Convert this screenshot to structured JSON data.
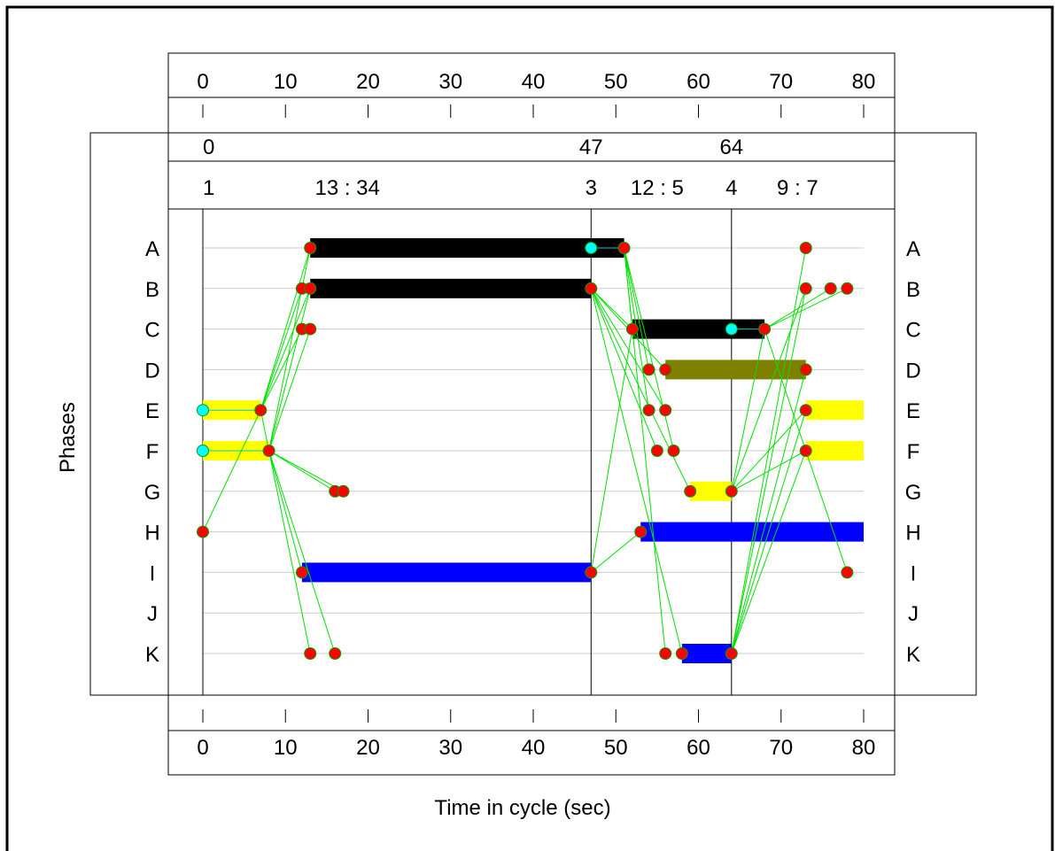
{
  "chart_data": {
    "type": "gantt",
    "xlabel": "Time in cycle (sec)",
    "ylabel": "Phases",
    "xlim": [
      0,
      80
    ],
    "x_ticks": [
      "0",
      "10",
      "20",
      "30",
      "40",
      "50",
      "60",
      "70",
      "80"
    ],
    "rows": [
      "A",
      "B",
      "C",
      "D",
      "E",
      "F",
      "G",
      "H",
      "I",
      "J",
      "K"
    ],
    "barrier_times": [
      {
        "value": 0,
        "label": "0"
      },
      {
        "value": 47,
        "label": "47"
      },
      {
        "value": 64,
        "label": "64"
      }
    ],
    "stage_labels": [
      {
        "x": 0,
        "text": "1",
        "color": "#ffff00"
      },
      {
        "x": 17.5,
        "text": "13 : 34",
        "color": "#ff0000"
      },
      {
        "x": 47,
        "text": "3",
        "color": "#ffff00"
      },
      {
        "x": 55,
        "text": "12 : 5",
        "color": "#ff0000"
      },
      {
        "x": 64,
        "text": "4",
        "color": "#ffff00"
      },
      {
        "x": 72,
        "text": "9 : 7",
        "color": "#ff0000"
      }
    ],
    "bars": [
      {
        "row": "A",
        "start": 13,
        "end": 51,
        "color": "#000000"
      },
      {
        "row": "B",
        "start": 13,
        "end": 47,
        "color": "#000000"
      },
      {
        "row": "C",
        "start": 52,
        "end": 68,
        "color": "#000000"
      },
      {
        "row": "D",
        "start": 56,
        "end": 73,
        "color": "#808000"
      },
      {
        "row": "E",
        "start": 0,
        "end": 7,
        "color": "#ffff00"
      },
      {
        "row": "E",
        "start": 73,
        "end": 80,
        "color": "#ffff00"
      },
      {
        "row": "F",
        "start": 0,
        "end": 8,
        "color": "#ffff00"
      },
      {
        "row": "F",
        "start": 73,
        "end": 80,
        "color": "#ffff00"
      },
      {
        "row": "G",
        "start": 59,
        "end": 64,
        "color": "#ffff00"
      },
      {
        "row": "H",
        "start": 53,
        "end": 80,
        "color": "#0000ff"
      },
      {
        "row": "I",
        "start": 12,
        "end": 47,
        "color": "#0000ff"
      },
      {
        "row": "K",
        "start": 58,
        "end": 64,
        "color": "#0000ff"
      }
    ],
    "points": [
      {
        "row": "A",
        "x": 13,
        "color": "#ff0000"
      },
      {
        "row": "A",
        "x": 47,
        "color": "#00ffff"
      },
      {
        "row": "A",
        "x": 51,
        "color": "#ff0000"
      },
      {
        "row": "A",
        "x": 73,
        "color": "#ff0000"
      },
      {
        "row": "B",
        "x": 12,
        "color": "#ff0000"
      },
      {
        "row": "B",
        "x": 13,
        "color": "#ff0000"
      },
      {
        "row": "B",
        "x": 47,
        "color": "#ff0000"
      },
      {
        "row": "B",
        "x": 73,
        "color": "#ff0000"
      },
      {
        "row": "B",
        "x": 76,
        "color": "#ff0000"
      },
      {
        "row": "B",
        "x": 78,
        "color": "#ff0000"
      },
      {
        "row": "C",
        "x": 12,
        "color": "#ff0000"
      },
      {
        "row": "C",
        "x": 13,
        "color": "#ff0000"
      },
      {
        "row": "C",
        "x": 52,
        "color": "#ff0000"
      },
      {
        "row": "C",
        "x": 64,
        "color": "#00ffff"
      },
      {
        "row": "C",
        "x": 68,
        "color": "#ff0000"
      },
      {
        "row": "D",
        "x": 54,
        "color": "#ff0000"
      },
      {
        "row": "D",
        "x": 56,
        "color": "#ff0000"
      },
      {
        "row": "D",
        "x": 73,
        "color": "#ff0000"
      },
      {
        "row": "E",
        "x": 0,
        "color": "#00ffff"
      },
      {
        "row": "E",
        "x": 7,
        "color": "#ff0000"
      },
      {
        "row": "E",
        "x": 54,
        "color": "#ff0000"
      },
      {
        "row": "E",
        "x": 56,
        "color": "#ff0000"
      },
      {
        "row": "E",
        "x": 73,
        "color": "#ff0000"
      },
      {
        "row": "F",
        "x": 0,
        "color": "#00ffff"
      },
      {
        "row": "F",
        "x": 8,
        "color": "#ff0000"
      },
      {
        "row": "F",
        "x": 55,
        "color": "#ff0000"
      },
      {
        "row": "F",
        "x": 57,
        "color": "#ff0000"
      },
      {
        "row": "F",
        "x": 73,
        "color": "#ff0000"
      },
      {
        "row": "G",
        "x": 16,
        "color": "#ff0000"
      },
      {
        "row": "G",
        "x": 17,
        "color": "#ff0000"
      },
      {
        "row": "G",
        "x": 59,
        "color": "#ff0000"
      },
      {
        "row": "G",
        "x": 64,
        "color": "#ff0000"
      },
      {
        "row": "H",
        "x": 0,
        "color": "#ff0000"
      },
      {
        "row": "H",
        "x": 53,
        "color": "#ff0000"
      },
      {
        "row": "I",
        "x": 12,
        "color": "#ff0000"
      },
      {
        "row": "I",
        "x": 47,
        "color": "#ff0000"
      },
      {
        "row": "I",
        "x": 78,
        "color": "#ff0000"
      },
      {
        "row": "K",
        "x": 13,
        "color": "#ff0000"
      },
      {
        "row": "K",
        "x": 16,
        "color": "#ff0000"
      },
      {
        "row": "K",
        "x": 56,
        "color": "#ff0000"
      },
      {
        "row": "K",
        "x": 58,
        "color": "#ff0000"
      },
      {
        "row": "K",
        "x": 64,
        "color": "#ff0000"
      }
    ],
    "links": [
      {
        "from": [
          "H",
          0
        ],
        "to": [
          "E",
          7
        ]
      },
      {
        "from": [
          "E",
          7
        ],
        "to": [
          "A",
          13
        ]
      },
      {
        "from": [
          "E",
          7
        ],
        "to": [
          "B",
          12
        ]
      },
      {
        "from": [
          "E",
          7
        ],
        "to": [
          "C",
          12
        ]
      },
      {
        "from": [
          "E",
          7
        ],
        "to": [
          "B",
          13
        ]
      },
      {
        "from": [
          "F",
          8
        ],
        "to": [
          "B",
          13
        ]
      },
      {
        "from": [
          "F",
          8
        ],
        "to": [
          "C",
          13
        ]
      },
      {
        "from": [
          "F",
          8
        ],
        "to": [
          "A",
          13
        ]
      },
      {
        "from": [
          "F",
          8
        ],
        "to": [
          "G",
          16
        ]
      },
      {
        "from": [
          "F",
          8
        ],
        "to": [
          "G",
          17
        ]
      },
      {
        "from": [
          "F",
          8
        ],
        "to": [
          "I",
          12
        ]
      },
      {
        "from": [
          "F",
          8
        ],
        "to": [
          "K",
          13
        ]
      },
      {
        "from": [
          "F",
          8
        ],
        "to": [
          "K",
          16
        ]
      },
      {
        "from": [
          "E",
          7
        ],
        "to": [
          "F",
          8
        ]
      },
      {
        "from": [
          "A",
          51
        ],
        "to": [
          "C",
          52
        ]
      },
      {
        "from": [
          "A",
          51
        ],
        "to": [
          "D",
          54
        ]
      },
      {
        "from": [
          "A",
          51
        ],
        "to": [
          "E",
          54
        ]
      },
      {
        "from": [
          "A",
          51
        ],
        "to": [
          "F",
          57
        ]
      },
      {
        "from": [
          "A",
          51
        ],
        "to": [
          "K",
          56
        ]
      },
      {
        "from": [
          "B",
          47
        ],
        "to": [
          "C",
          52
        ]
      },
      {
        "from": [
          "B",
          47
        ],
        "to": [
          "D",
          56
        ]
      },
      {
        "from": [
          "B",
          47
        ],
        "to": [
          "E",
          56
        ]
      },
      {
        "from": [
          "B",
          47
        ],
        "to": [
          "F",
          55
        ]
      },
      {
        "from": [
          "B",
          47
        ],
        "to": [
          "G",
          59
        ]
      },
      {
        "from": [
          "B",
          47
        ],
        "to": [
          "K",
          58
        ]
      },
      {
        "from": [
          "I",
          47
        ],
        "to": [
          "C",
          52
        ]
      },
      {
        "from": [
          "I",
          47
        ],
        "to": [
          "H",
          53
        ]
      },
      {
        "from": [
          "G",
          64
        ],
        "to": [
          "C",
          68
        ]
      },
      {
        "from": [
          "G",
          64
        ],
        "to": [
          "B",
          73
        ]
      },
      {
        "from": [
          "G",
          64
        ],
        "to": [
          "E",
          73
        ]
      },
      {
        "from": [
          "G",
          64
        ],
        "to": [
          "F",
          73
        ]
      },
      {
        "from": [
          "K",
          64
        ],
        "to": [
          "A",
          73
        ]
      },
      {
        "from": [
          "K",
          64
        ],
        "to": [
          "B",
          73
        ]
      },
      {
        "from": [
          "K",
          64
        ],
        "to": [
          "D",
          73
        ]
      },
      {
        "from": [
          "K",
          64
        ],
        "to": [
          "E",
          73
        ]
      },
      {
        "from": [
          "K",
          64
        ],
        "to": [
          "F",
          73
        ]
      },
      {
        "from": [
          "C",
          68
        ],
        "to": [
          "I",
          78
        ]
      },
      {
        "from": [
          "C",
          68
        ],
        "to": [
          "B",
          76
        ]
      },
      {
        "from": [
          "C",
          68
        ],
        "to": [
          "B",
          78
        ]
      }
    ]
  }
}
